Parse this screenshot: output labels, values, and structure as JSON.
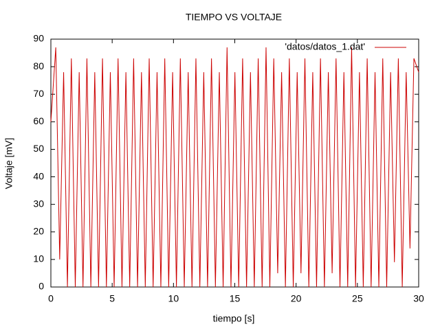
{
  "chart_data": {
    "type": "line",
    "title": "TIEMPO VS VOLTAJE",
    "x_label": "tiempo [s]",
    "y_label": "Voltaje [mV]",
    "x": [
      0,
      0.4,
      0.72,
      1.04,
      1.35,
      1.67,
      1.99,
      2.31,
      2.62,
      2.94,
      3.26,
      3.58,
      3.89,
      4.21,
      4.53,
      4.85,
      5.16,
      5.48,
      5.8,
      6.12,
      6.43,
      6.75,
      7.07,
      7.39,
      7.7,
      8.02,
      8.34,
      8.66,
      8.97,
      9.29,
      9.61,
      9.93,
      10.24,
      10.56,
      10.88,
      11.2,
      11.51,
      11.83,
      12.15,
      12.47,
      12.78,
      13.1,
      13.42,
      13.74,
      14.05,
      14.37,
      14.69,
      15.01,
      15.32,
      15.64,
      15.96,
      16.28,
      16.59,
      16.91,
      17.23,
      17.55,
      17.86,
      18.18,
      18.5,
      18.82,
      19.13,
      19.45,
      19.77,
      20.09,
      20.4,
      20.72,
      21.04,
      21.36,
      21.67,
      21.99,
      22.31,
      22.63,
      22.94,
      23.26,
      23.58,
      23.9,
      24.21,
      24.53,
      24.85,
      25.17,
      25.48,
      25.8,
      26.12,
      26.44,
      26.75,
      27.07,
      27.39,
      27.71,
      28.02,
      28.34,
      28.66,
      28.98,
      29.29,
      29.61,
      30
    ],
    "series": [
      {
        "name": "'datos/datos_1.dat'",
        "color": "#cc0000",
        "values": [
          60,
          87,
          10,
          78,
          0,
          83,
          0,
          78,
          0,
          83,
          0,
          78,
          0,
          83,
          0,
          78,
          0,
          83,
          0,
          78,
          0,
          83,
          0,
          78,
          0,
          83,
          0,
          78,
          0,
          83,
          0,
          78,
          0,
          83,
          0,
          78,
          0,
          83,
          0,
          78,
          0,
          83,
          0,
          78,
          0,
          87,
          0,
          78,
          0,
          83,
          0,
          78,
          0,
          83,
          0,
          87,
          0,
          83,
          5,
          78,
          0,
          83,
          0,
          78,
          5,
          83,
          0,
          78,
          0,
          83,
          0,
          78,
          5,
          83,
          0,
          78,
          0,
          87,
          0,
          78,
          0,
          83,
          0,
          78,
          0,
          83,
          0,
          78,
          9,
          83,
          0,
          78,
          14,
          83,
          78
        ]
      }
    ],
    "xlim": [
      0,
      30
    ],
    "xticks": [
      0,
      5,
      10,
      15,
      20,
      25,
      30
    ],
    "ylim": [
      0,
      90
    ],
    "yticks": [
      0,
      10,
      20,
      30,
      40,
      50,
      60,
      70,
      80,
      90
    ],
    "grid": false,
    "legend": "top-right"
  }
}
